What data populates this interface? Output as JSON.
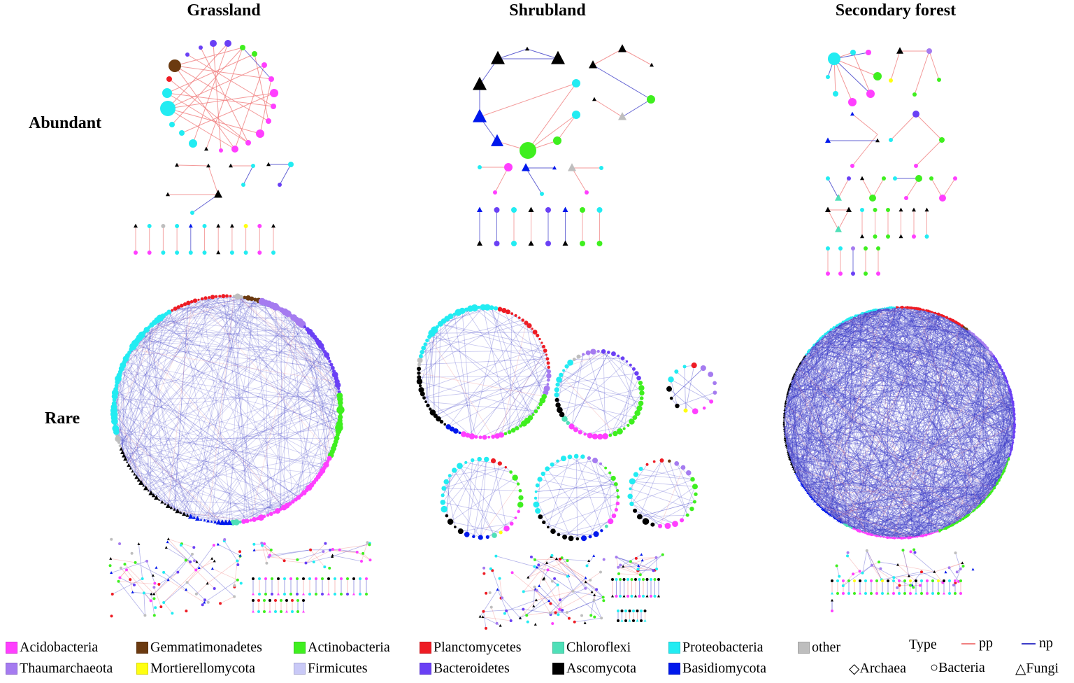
{
  "columns": [
    "Grassland",
    "Shrubland",
    "Secondary forest"
  ],
  "rows": [
    "Abundant",
    "Rare"
  ],
  "legend": {
    "taxa": [
      {
        "name": "Acidobacteria",
        "color": "#ff3fff"
      },
      {
        "name": "Gemmatimonadetes",
        "color": "#6b3a10"
      },
      {
        "name": "Actinobacteria",
        "color": "#3fef1f"
      },
      {
        "name": "Planctomycetes",
        "color": "#ee1c24"
      },
      {
        "name": "Chloroflexi",
        "color": "#4fe0b8"
      },
      {
        "name": "Proteobacteria",
        "color": "#22ecf2"
      },
      {
        "name": "other",
        "color": "#bebebe"
      },
      {
        "name": "Thaumarchaeota",
        "color": "#a57bf0"
      },
      {
        "name": "Mortierellomycota",
        "color": "#ffff10"
      },
      {
        "name": "Firmicutes",
        "color": "#c9c9f7"
      },
      {
        "name": "Bacteroidetes",
        "color": "#6a40f5"
      },
      {
        "name": "Ascomycota",
        "color": "#000000"
      },
      {
        "name": "Basidiomycota",
        "color": "#0018ec"
      }
    ],
    "type_label": "Type",
    "edge_types": [
      {
        "name": "pp",
        "color": "#f08080"
      },
      {
        "name": "np",
        "color": "#3c3cc8"
      }
    ],
    "node_shapes": [
      {
        "name": "Archaea",
        "symbol": "◇"
      },
      {
        "name": "Bacteria",
        "symbol": "○"
      },
      {
        "name": "Fungi",
        "symbol": "△"
      }
    ]
  }
}
